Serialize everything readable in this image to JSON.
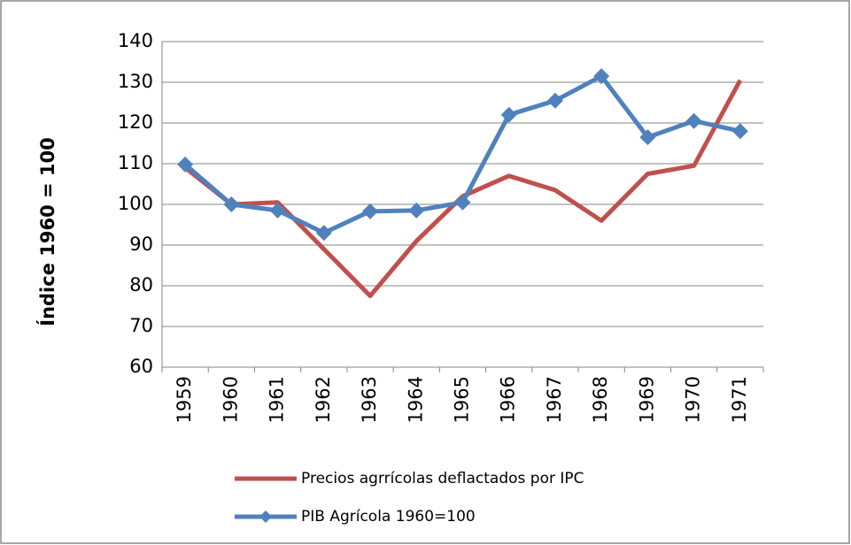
{
  "chart_data": {
    "type": "line",
    "y_label": "Índice 1960 = 100",
    "categories": [
      "1959",
      "1960",
      "1961",
      "1962",
      "1963",
      "1964",
      "1965",
      "1966",
      "1967",
      "1968",
      "1969",
      "1970",
      "1971"
    ],
    "series": [
      {
        "name": "Precios agrrícolas deflactados por IPC",
        "color": "#c0504d",
        "marker": false,
        "values": [
          109,
          100,
          100.5,
          89,
          77.5,
          91,
          102,
          107,
          103.5,
          96,
          107.5,
          109.5,
          130.5
        ]
      },
      {
        "name": "PIB Agrícola 1960=100",
        "color": "#4f81bd",
        "marker": true,
        "values": [
          109.8,
          100,
          98.5,
          93,
          98.3,
          98.5,
          100.5,
          122,
          125.5,
          131.5,
          116.5,
          120.5,
          118
        ]
      }
    ],
    "ylim": [
      60,
      140
    ],
    "yticks": [
      60,
      70,
      80,
      90,
      100,
      110,
      120,
      130,
      140
    ],
    "grid": true
  }
}
